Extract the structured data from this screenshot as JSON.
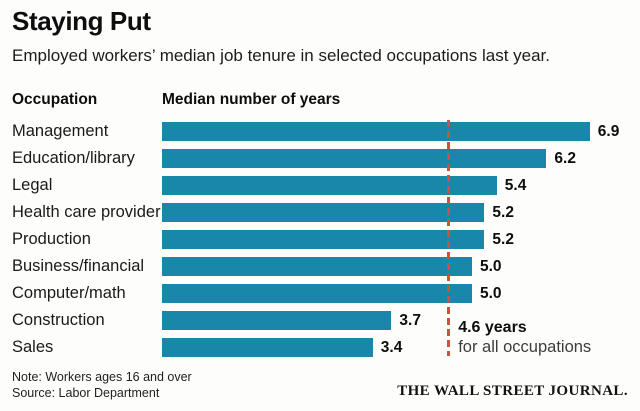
{
  "header": {
    "title": "Staying Put",
    "subtitle": "Employed workers’ median job tenure in selected occupations last year."
  },
  "columns": {
    "occupation": "Occupation",
    "value": "Median number of years"
  },
  "chart_data": {
    "type": "bar",
    "orientation": "horizontal",
    "title": "Staying Put",
    "xlabel": "Median number of years",
    "xlim": [
      0,
      7.7
    ],
    "grid": false,
    "bar_color": "#1987aa",
    "categories": [
      "Management",
      "Education/library",
      "Legal",
      "Health care provider",
      "Production",
      "Business/financial",
      "Computer/math",
      "Construction",
      "Sales"
    ],
    "values": [
      6.9,
      6.2,
      5.4,
      5.2,
      5.2,
      5.0,
      5.0,
      3.7,
      3.4
    ],
    "value_labels": [
      "6.9",
      "6.2",
      "5.4",
      "5.2",
      "5.2",
      "5.0",
      "5.0",
      "3.7",
      "3.4"
    ],
    "reference_line": {
      "value": 4.6,
      "style": "dashed",
      "color": "#cc5142",
      "label_line1": "4.6 years",
      "label_line2": "for all occupations"
    }
  },
  "footer": {
    "note": "Note: Workers ages 16 and over",
    "source": "Source: Labor Department",
    "logo": "THE WALL STREET JOURNAL."
  }
}
